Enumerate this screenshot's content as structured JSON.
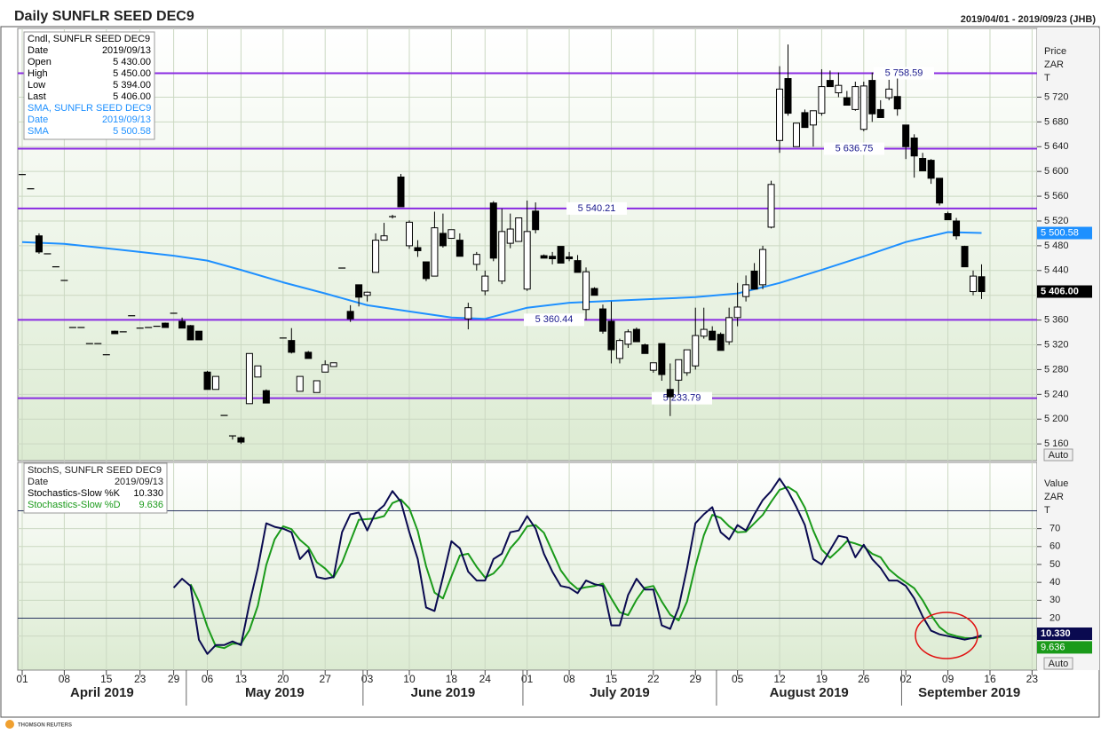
{
  "chart_data": {
    "type": "candlestick",
    "title": "Daily SUNFLR SEED DEC9",
    "date_range": "2019/04/01 - 2019/09/23 (JHB)",
    "categories": [
      "2019-04-01",
      "2019-04-02",
      "2019-04-03",
      "2019-04-04",
      "2019-04-05",
      "2019-04-08",
      "2019-04-09",
      "2019-04-10",
      "2019-04-11",
      "2019-04-12",
      "2019-04-15",
      "2019-04-16",
      "2019-04-17",
      "2019-04-18",
      "2019-04-23",
      "2019-04-24",
      "2019-04-25",
      "2019-04-26",
      "2019-04-29",
      "2019-04-30",
      "2019-05-02",
      "2019-05-03",
      "2019-05-06",
      "2019-05-07",
      "2019-05-09",
      "2019-05-10",
      "2019-05-13",
      "2019-05-14",
      "2019-05-15",
      "2019-05-16",
      "2019-05-17",
      "2019-05-20",
      "2019-05-21",
      "2019-05-22",
      "2019-05-23",
      "2019-05-24",
      "2019-05-27",
      "2019-05-28",
      "2019-05-29",
      "2019-05-30",
      "2019-05-31",
      "2019-06-03",
      "2019-06-04",
      "2019-06-05",
      "2019-06-06",
      "2019-06-07",
      "2019-06-10",
      "2019-06-11",
      "2019-06-12",
      "2019-06-13",
      "2019-06-14",
      "2019-06-18",
      "2019-06-19",
      "2019-06-20",
      "2019-06-21",
      "2019-06-24",
      "2019-06-25",
      "2019-06-26",
      "2019-06-27",
      "2019-06-28",
      "2019-07-01",
      "2019-07-02",
      "2019-07-03",
      "2019-07-04",
      "2019-07-05",
      "2019-07-08",
      "2019-07-09",
      "2019-07-10",
      "2019-07-11",
      "2019-07-12",
      "2019-07-15",
      "2019-07-16",
      "2019-07-17",
      "2019-07-18",
      "2019-07-19",
      "2019-07-22",
      "2019-07-23",
      "2019-07-24",
      "2019-07-25",
      "2019-07-26",
      "2019-07-29",
      "2019-07-30",
      "2019-07-31",
      "2019-08-01",
      "2019-08-02",
      "2019-08-05",
      "2019-08-06",
      "2019-08-07",
      "2019-08-08",
      "2019-08-09",
      "2019-08-12",
      "2019-08-13",
      "2019-08-14",
      "2019-08-15",
      "2019-08-16",
      "2019-08-19",
      "2019-08-20",
      "2019-08-21",
      "2019-08-22",
      "2019-08-23",
      "2019-08-26",
      "2019-08-27",
      "2019-08-28",
      "2019-08-29",
      "2019-08-30",
      "2019-09-02",
      "2019-09-03",
      "2019-09-04",
      "2019-09-05",
      "2019-09-06",
      "2019-09-09",
      "2019-09-10",
      "2019-09-11",
      "2019-09-12",
      "2019-09-13",
      "2019-09-16",
      "2019-09-17",
      "2019-09-18",
      "2019-09-19",
      "2019-09-20",
      "2019-09-23"
    ],
    "open": [
      5595,
      5572,
      5496,
      5467,
      5446,
      5424,
      5348,
      5348,
      5322,
      5322,
      5304,
      5342,
      5341,
      5367,
      5347,
      5348,
      5350,
      5355,
      5371,
      5358,
      5351,
      5342,
      5276,
      5248,
      5206,
      5173,
      5170,
      5225,
      5268,
      5246,
      null,
      5331,
      5327,
      5245,
      5308,
      5243,
      5276,
      5285,
      5444,
      5374,
      5417,
      5400,
      5437,
      5489,
      5527,
      5591,
      5480,
      5477,
      5454,
      5431,
      5500,
      5492,
      5489,
      5362,
      5450,
      5407,
      5549,
      5423,
      5484,
      5487,
      5410,
      5536,
      5464,
      5463,
      5479,
      5462,
      5456,
      5377,
      5411,
      5378,
      5358,
      5298,
      5321,
      5345,
      5320,
      5279,
      5322,
      5248,
      5263,
      5275,
      5286,
      5334,
      5342,
      5337,
      5325,
      5364,
      5398,
      5439,
      5417,
      5510,
      5650,
      5750,
      5640,
      5695,
      5675,
      5694,
      5747,
      5727,
      5719,
      5700,
      5668,
      5747,
      5700,
      5719,
      5721,
      5675,
      5654,
      5621,
      5618,
      5589,
      5532,
      5520,
      5479,
      5406,
      5430,
      null,
      null,
      null,
      null,
      null,
      null
    ],
    "high": [
      5595,
      5572,
      5500,
      5467,
      5446,
      5424,
      5348,
      5348,
      5322,
      5322,
      5304,
      5343,
      5341,
      5367,
      5347,
      5348,
      5350,
      5356,
      5371,
      5364,
      5352,
      5342,
      5278,
      5269,
      5206,
      5173,
      5172,
      5306,
      5286,
      5248,
      null,
      5331,
      5347,
      5269,
      5310,
      5262,
      5295,
      5291,
      5444,
      5384,
      5417,
      5406,
      5500,
      5517,
      5530,
      5596,
      5521,
      5489,
      5454,
      5535,
      5532,
      5506,
      5500,
      5388,
      5470,
      5440,
      5552,
      5540,
      5532,
      5525,
      5553,
      5550,
      5466,
      5470,
      5479,
      5470,
      5465,
      5445,
      5413,
      5385,
      5390,
      5330,
      5345,
      5348,
      5322,
      5291,
      5322,
      5290,
      5296,
      5312,
      5380,
      5380,
      5350,
      5340,
      5380,
      5420,
      5432,
      5452,
      5480,
      5585,
      5770,
      5805,
      5678,
      5700,
      5698,
      5765,
      5763,
      5760,
      5730,
      5745,
      5745,
      5760,
      5715,
      5748,
      5750,
      5675,
      5660,
      5630,
      5620,
      5589,
      5535,
      5525,
      5480,
      5440,
      5450,
      null,
      null,
      null,
      null,
      null,
      null
    ],
    "low": [
      5595,
      5572,
      5467,
      5467,
      5446,
      5424,
      5348,
      5348,
      5322,
      5322,
      5304,
      5338,
      5341,
      5367,
      5347,
      5348,
      5350,
      5348,
      5371,
      5347,
      5328,
      5328,
      5248,
      5248,
      5206,
      5167,
      5160,
      5225,
      5268,
      5226,
      null,
      5331,
      5306,
      5245,
      5298,
      5243,
      5276,
      5285,
      5444,
      5357,
      5382,
      5390,
      5437,
      5489,
      5524,
      5543,
      5475,
      5462,
      5423,
      5431,
      5477,
      5492,
      5463,
      5345,
      5440,
      5400,
      5455,
      5418,
      5476,
      5487,
      5407,
      5500,
      5460,
      5450,
      5452,
      5455,
      5437,
      5360,
      5400,
      5338,
      5290,
      5290,
      5315,
      5325,
      5306,
      5275,
      5262,
      5205,
      5240,
      5270,
      5280,
      5330,
      5328,
      5311,
      5320,
      5350,
      5390,
      5410,
      5410,
      5508,
      5630,
      5690,
      5640,
      5671,
      5640,
      5690,
      5737,
      5720,
      5707,
      5698,
      5665,
      5680,
      5687,
      5715,
      5690,
      5620,
      5590,
      5601,
      5580,
      5545,
      5522,
      5490,
      5446,
      5400,
      5394,
      null,
      null,
      null,
      null,
      null,
      null
    ],
    "close": [
      5595,
      5572,
      5470,
      5467,
      5446,
      5424,
      5348,
      5348,
      5322,
      5322,
      5304,
      5338,
      5341,
      5367,
      5347,
      5348,
      5350,
      5348,
      5371,
      5347,
      5328,
      5328,
      5248,
      5269,
      5206,
      5173,
      5163,
      5306,
      5286,
      5226,
      null,
      5331,
      5308,
      5269,
      5298,
      5262,
      5288,
      5291,
      5444,
      5362,
      5397,
      5405,
      5489,
      5496,
      5527,
      5543,
      5518,
      5472,
      5427,
      5509,
      5480,
      5506,
      5463,
      5380,
      5466,
      5431,
      5460,
      5503,
      5507,
      5525,
      5503,
      5506,
      5460,
      5459,
      5452,
      5459,
      5437,
      5438,
      5400,
      5342,
      5312,
      5327,
      5341,
      5325,
      5306,
      5291,
      5272,
      5236,
      5296,
      5312,
      5335,
      5345,
      5328,
      5311,
      5364,
      5381,
      5417,
      5410,
      5474,
      5579,
      5733,
      5694,
      5678,
      5671,
      5698,
      5737,
      5737,
      5739,
      5707,
      5737,
      5738,
      5693,
      5687,
      5733,
      5701,
      5640,
      5625,
      5601,
      5589,
      5549,
      5522,
      5496,
      5446,
      5431,
      5406,
      null,
      null,
      null,
      null,
      null,
      null
    ],
    "color_up": "#ffffff",
    "color_down": "#000000",
    "last_close": {
      "value": 5406,
      "label": "5 406.00"
    },
    "sma": {
      "color": "#1e90ff",
      "x": [
        "2019-04-01",
        "2019-04-08",
        "2019-04-15",
        "2019-04-23",
        "2019-04-29",
        "2019-05-06",
        "2019-05-13",
        "2019-05-20",
        "2019-05-27",
        "2019-06-03",
        "2019-06-10",
        "2019-06-18",
        "2019-06-24",
        "2019-07-01",
        "2019-07-08",
        "2019-07-15",
        "2019-07-22",
        "2019-07-29",
        "2019-08-05",
        "2019-08-12",
        "2019-08-19",
        "2019-08-26",
        "2019-09-02",
        "2019-09-09",
        "2019-09-13"
      ],
      "values": [
        5486,
        5483,
        5476,
        5470,
        5464,
        5456,
        5441,
        5421,
        5403,
        5384,
        5374,
        5364,
        5362,
        5380,
        5388,
        5391,
        5394,
        5397,
        5403,
        5420,
        5441,
        5463,
        5486,
        5502,
        5500.58
      ],
      "last": {
        "value": 5500.58,
        "label": "5 500.58"
      }
    },
    "levels": {
      "color": "#8a2be2",
      "items": [
        {
          "value": 5758.59,
          "label": "5 758.59"
        },
        {
          "value": 5636.75,
          "label": "5 636.75"
        },
        {
          "value": 5540.21,
          "label": "5 540.21"
        },
        {
          "value": 5360.44,
          "label": "5 360.44"
        },
        {
          "value": 5233.79,
          "label": "5 233.79"
        }
      ]
    },
    "ylim": [
      5133,
      5831
    ],
    "yticks": [
      {
        "value": 5160,
        "label": "5 160"
      },
      {
        "value": 5200,
        "label": "5 200"
      },
      {
        "value": 5240,
        "label": "5 240"
      },
      {
        "value": 5280,
        "label": "5 280"
      },
      {
        "value": 5320,
        "label": "5 320"
      },
      {
        "value": 5360,
        "label": "5 360"
      },
      {
        "value": 5400,
        "label": "5 400"
      },
      {
        "value": 5440,
        "label": "5 440"
      },
      {
        "value": 5480,
        "label": "5 480"
      },
      {
        "value": 5520,
        "label": "5 520"
      },
      {
        "value": 5560,
        "label": "5 560"
      },
      {
        "value": 5600,
        "label": "5 600"
      },
      {
        "value": 5640,
        "label": "5 640"
      },
      {
        "value": 5680,
        "label": "5 680"
      },
      {
        "value": 5720,
        "label": "5 720"
      }
    ],
    "y_axis_header": [
      "Price",
      "ZAR",
      "T"
    ],
    "button": "Auto",
    "grid": true,
    "info_box": [
      {
        "color": "#000000",
        "heading": "Cndl, SUNFLR SEED DEC9",
        "rows": [
          [
            "Date",
            "2019/09/13"
          ],
          [
            "Open",
            "5 430.00"
          ],
          [
            "High",
            "5 450.00"
          ],
          [
            "Low",
            "5 394.00"
          ],
          [
            "Last",
            "5 406.00"
          ]
        ]
      },
      {
        "color": "#1e90ff",
        "heading": "SMA, SUNFLR SEED DEC9",
        "rows": [
          [
            "Date",
            "2019/09/13"
          ],
          [
            "SMA",
            "5 500.58"
          ]
        ]
      }
    ],
    "xticks": [
      {
        "value": "2019-04-01",
        "label": "01"
      },
      {
        "value": "2019-04-08",
        "label": "08"
      },
      {
        "value": "2019-04-15",
        "label": "15"
      },
      {
        "value": "2019-04-23",
        "label": "23"
      },
      {
        "value": "2019-04-29",
        "label": "29"
      },
      {
        "value": "2019-05-06",
        "label": "06"
      },
      {
        "value": "2019-05-13",
        "label": "13"
      },
      {
        "value": "2019-05-20",
        "label": "20"
      },
      {
        "value": "2019-05-27",
        "label": "27"
      },
      {
        "value": "2019-06-03",
        "label": "03"
      },
      {
        "value": "2019-06-10",
        "label": "10"
      },
      {
        "value": "2019-06-18",
        "label": "18"
      },
      {
        "value": "2019-06-24",
        "label": "24"
      },
      {
        "value": "2019-07-01",
        "label": "01"
      },
      {
        "value": "2019-07-08",
        "label": "08"
      },
      {
        "value": "2019-07-15",
        "label": "15"
      },
      {
        "value": "2019-07-22",
        "label": "22"
      },
      {
        "value": "2019-07-29",
        "label": "29"
      },
      {
        "value": "2019-08-05",
        "label": "05"
      },
      {
        "value": "2019-08-12",
        "label": "12"
      },
      {
        "value": "2019-08-19",
        "label": "19"
      },
      {
        "value": "2019-08-26",
        "label": "26"
      },
      {
        "value": "2019-09-02",
        "label": "02"
      },
      {
        "value": "2019-09-09",
        "label": "09"
      },
      {
        "value": "2019-09-16",
        "label": "16"
      },
      {
        "value": "2019-09-23",
        "label": "23"
      }
    ],
    "months": [
      {
        "value": "2019-04-01",
        "label": "April 2019"
      },
      {
        "value": "2019-05-02",
        "label": "May 2019"
      },
      {
        "value": "2019-06-03",
        "label": "June 2019"
      },
      {
        "value": "2019-07-01",
        "label": "July 2019"
      },
      {
        "value": "2019-08-01",
        "label": "August 2019"
      },
      {
        "value": "2019-09-02",
        "label": "September 2019"
      }
    ],
    "stochastics": {
      "type": "line",
      "heading": "StochS, SUNFLR SEED DEC9",
      "rows": [
        [
          "Date",
          "2019/09/13"
        ]
      ],
      "series": [
        {
          "name": "Stochastics-Slow %K",
          "color": "#0a0a50",
          "last": {
            "value": 10.33,
            "label": "10.330"
          },
          "values": [
            null,
            null,
            null,
            null,
            null,
            null,
            null,
            null,
            null,
            null,
            null,
            null,
            null,
            null,
            null,
            null,
            null,
            null,
            37,
            42,
            38,
            8,
            0,
            5,
            5,
            7,
            5,
            28,
            48,
            73,
            71,
            70,
            68,
            53,
            58,
            43,
            42,
            43,
            68,
            78,
            79,
            69,
            79,
            83,
            91,
            85,
            68,
            53,
            26,
            24,
            43,
            63,
            59,
            46,
            41,
            41,
            53,
            56,
            68,
            69,
            77,
            70,
            56,
            46,
            38,
            37,
            34,
            41,
            39,
            38,
            16,
            16,
            33,
            42,
            36,
            36,
            16,
            14,
            26,
            48,
            73,
            78,
            82,
            68,
            64,
            72,
            69,
            78,
            86,
            91,
            98,
            91,
            82,
            72,
            53,
            50,
            58,
            66,
            65,
            54,
            61,
            53,
            48,
            41,
            41,
            38,
            31,
            21,
            13,
            11,
            10,
            9,
            8,
            9,
            10.33,
            null,
            null,
            null,
            null,
            null,
            null
          ]
        },
        {
          "name": "Stochastics-Slow %D",
          "color": "#1a9a1a",
          "last": {
            "value": 9.636,
            "label": "9.636"
          },
          "values": [
            null,
            null,
            null,
            null,
            null,
            null,
            null,
            null,
            null,
            null,
            null,
            null,
            null,
            null,
            null,
            null,
            null,
            null,
            null,
            null,
            39,
            29.3,
            15.3,
            4.3,
            3.3,
            5.7,
            5.7,
            13.3,
            27,
            49.7,
            64,
            71.3,
            69.7,
            63.7,
            59.7,
            51.3,
            47.7,
            42.7,
            51,
            63,
            75,
            75.3,
            75.7,
            77,
            84.3,
            86.3,
            81.3,
            68.7,
            49,
            34.3,
            31,
            43.3,
            55,
            56,
            48.7,
            42.7,
            45,
            50,
            59,
            64.3,
            71.3,
            72,
            67.7,
            57.3,
            46.7,
            40.3,
            36.3,
            37.3,
            38,
            39.3,
            31,
            23.3,
            21.7,
            30.3,
            37,
            38,
            29.3,
            22,
            18.7,
            29.3,
            49,
            66.3,
            77.7,
            76,
            71.3,
            68,
            68.3,
            73,
            77.7,
            85,
            91.7,
            93.3,
            90.3,
            81.7,
            69,
            58.3,
            53.7,
            58,
            63,
            61.7,
            60,
            56,
            54,
            47.3,
            43.3,
            40,
            36.7,
            30,
            21.7,
            15,
            11.3,
            10,
            9,
            8.7,
            9.636,
            null,
            null,
            null,
            null,
            null,
            null
          ]
        }
      ],
      "levels": [
        80,
        20
      ],
      "ylim": [
        -9,
        107
      ],
      "yticks": [
        10,
        20,
        30,
        40,
        50,
        60,
        70
      ],
      "y_axis_header": [
        "Value",
        "ZAR",
        "T"
      ]
    }
  },
  "footer": "THOMSON REUTERS"
}
